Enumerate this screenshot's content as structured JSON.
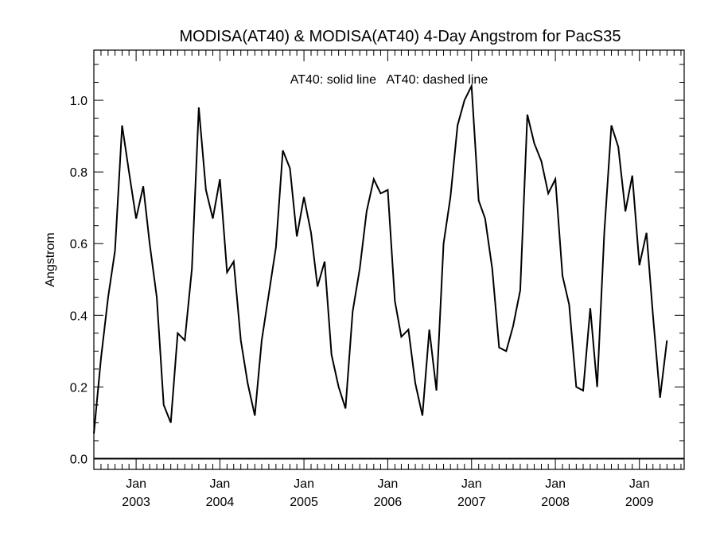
{
  "chart_data": {
    "type": "line",
    "title": "MODISA(AT40) & MODISA(AT40) 4-Day Angstrom for PacS35",
    "annotation": "AT40: solid line   AT40: dashed line",
    "xlabel": "",
    "ylabel": "Angstrom",
    "xlim": [
      "2002-07-01",
      "2009-07-15"
    ],
    "ylim": [
      -0.03,
      1.14
    ],
    "grid": false,
    "x_ticks": [
      {
        "date": "2003-01-01",
        "month": "Jan",
        "year": "2003"
      },
      {
        "date": "2004-01-01",
        "month": "Jan",
        "year": "2004"
      },
      {
        "date": "2005-01-01",
        "month": "Jan",
        "year": "2005"
      },
      {
        "date": "2006-01-01",
        "month": "Jan",
        "year": "2006"
      },
      {
        "date": "2007-01-01",
        "month": "Jan",
        "year": "2007"
      },
      {
        "date": "2008-01-01",
        "month": "Jan",
        "year": "2008"
      },
      {
        "date": "2009-01-01",
        "month": "Jan",
        "year": "2009"
      }
    ],
    "y_ticks": [
      {
        "value": 0.0,
        "label": "0.0"
      },
      {
        "value": 0.2,
        "label": "0.2"
      },
      {
        "value": 0.4,
        "label": "0.4"
      },
      {
        "value": 0.6,
        "label": "0.6"
      },
      {
        "value": 0.8,
        "label": "0.8"
      },
      {
        "value": 1.0,
        "label": "1.0"
      }
    ],
    "zero_line": 0.0,
    "series": [
      {
        "style": "solid",
        "color": "#000000",
        "points": [
          [
            "2002-07-01",
            0.07
          ],
          [
            "2002-08-01",
            0.28
          ],
          [
            "2002-09-01",
            0.45
          ],
          [
            "2002-10-01",
            0.58
          ],
          [
            "2002-11-01",
            0.93
          ],
          [
            "2002-12-01",
            0.8
          ],
          [
            "2003-01-01",
            0.67
          ],
          [
            "2003-02-01",
            0.76
          ],
          [
            "2003-03-01",
            0.6
          ],
          [
            "2003-04-01",
            0.45
          ],
          [
            "2003-05-01",
            0.15
          ],
          [
            "2003-06-01",
            0.1
          ],
          [
            "2003-07-01",
            0.35
          ],
          [
            "2003-08-01",
            0.33
          ],
          [
            "2003-09-01",
            0.53
          ],
          [
            "2003-10-01",
            0.98
          ],
          [
            "2003-11-01",
            0.75
          ],
          [
            "2003-12-01",
            0.67
          ],
          [
            "2004-01-01",
            0.78
          ],
          [
            "2004-02-01",
            0.52
          ],
          [
            "2004-03-01",
            0.55
          ],
          [
            "2004-04-01",
            0.33
          ],
          [
            "2004-05-01",
            0.21
          ],
          [
            "2004-06-01",
            0.12
          ],
          [
            "2004-07-01",
            0.33
          ],
          [
            "2004-08-01",
            0.46
          ],
          [
            "2004-09-01",
            0.59
          ],
          [
            "2004-10-01",
            0.86
          ],
          [
            "2004-11-01",
            0.81
          ],
          [
            "2004-12-01",
            0.62
          ],
          [
            "2005-01-01",
            0.73
          ],
          [
            "2005-02-01",
            0.63
          ],
          [
            "2005-03-01",
            0.48
          ],
          [
            "2005-04-01",
            0.55
          ],
          [
            "2005-05-01",
            0.29
          ],
          [
            "2005-06-01",
            0.2
          ],
          [
            "2005-07-01",
            0.14
          ],
          [
            "2005-08-01",
            0.41
          ],
          [
            "2005-09-01",
            0.53
          ],
          [
            "2005-10-01",
            0.69
          ],
          [
            "2005-11-01",
            0.78
          ],
          [
            "2005-12-01",
            0.74
          ],
          [
            "2006-01-01",
            0.75
          ],
          [
            "2006-02-01",
            0.44
          ],
          [
            "2006-03-01",
            0.34
          ],
          [
            "2006-04-01",
            0.36
          ],
          [
            "2006-05-01",
            0.21
          ],
          [
            "2006-06-01",
            0.12
          ],
          [
            "2006-07-01",
            0.36
          ],
          [
            "2006-08-01",
            0.19
          ],
          [
            "2006-09-01",
            0.6
          ],
          [
            "2006-10-01",
            0.73
          ],
          [
            "2006-11-01",
            0.93
          ],
          [
            "2006-12-01",
            1.0
          ],
          [
            "2007-01-01",
            1.04
          ],
          [
            "2007-02-01",
            0.72
          ],
          [
            "2007-03-01",
            0.67
          ],
          [
            "2007-04-01",
            0.53
          ],
          [
            "2007-05-01",
            0.31
          ],
          [
            "2007-06-01",
            0.3
          ],
          [
            "2007-07-01",
            0.37
          ],
          [
            "2007-08-01",
            0.47
          ],
          [
            "2007-09-01",
            0.96
          ],
          [
            "2007-10-01",
            0.88
          ],
          [
            "2007-11-01",
            0.83
          ],
          [
            "2007-12-01",
            0.74
          ],
          [
            "2008-01-01",
            0.78
          ],
          [
            "2008-02-01",
            0.51
          ],
          [
            "2008-03-01",
            0.43
          ],
          [
            "2008-04-01",
            0.2
          ],
          [
            "2008-05-01",
            0.19
          ],
          [
            "2008-06-01",
            0.42
          ],
          [
            "2008-07-01",
            0.2
          ],
          [
            "2008-08-01",
            0.63
          ],
          [
            "2008-09-01",
            0.93
          ],
          [
            "2008-10-01",
            0.87
          ],
          [
            "2008-11-01",
            0.69
          ],
          [
            "2008-12-01",
            0.79
          ],
          [
            "2009-01-01",
            0.54
          ],
          [
            "2009-02-01",
            0.63
          ],
          [
            "2009-03-01",
            0.4
          ],
          [
            "2009-04-01",
            0.17
          ],
          [
            "2009-05-01",
            0.33
          ]
        ]
      }
    ]
  }
}
